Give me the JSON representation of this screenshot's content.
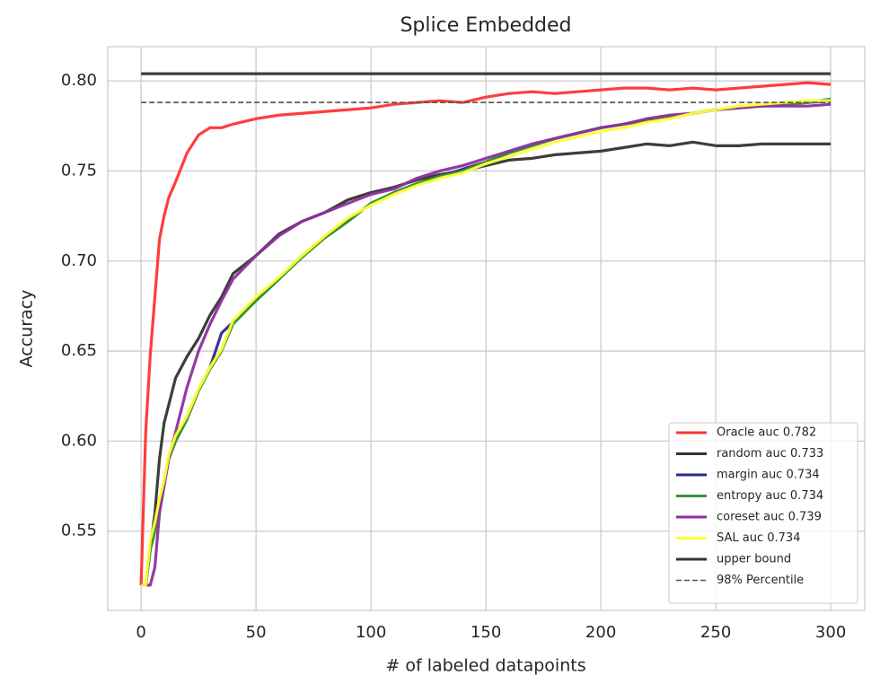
{
  "chart_data": {
    "type": "line",
    "title": "Splice Embedded",
    "x_label": "# of labeled datapoints",
    "y_label": "Accuracy",
    "x": [
      0,
      2,
      4,
      6,
      8,
      10,
      12,
      15,
      20,
      25,
      30,
      35,
      40,
      50,
      60,
      70,
      80,
      90,
      100,
      110,
      120,
      130,
      140,
      150,
      160,
      170,
      180,
      190,
      200,
      210,
      220,
      230,
      240,
      250,
      260,
      270,
      280,
      290,
      300
    ],
    "series": [
      {
        "name": "Oracle auc 0.782",
        "color": "#ff3333",
        "values": [
          0.52,
          0.605,
          0.648,
          0.68,
          0.712,
          0.725,
          0.735,
          0.744,
          0.76,
          0.77,
          0.774,
          0.774,
          0.776,
          0.779,
          0.781,
          0.782,
          0.783,
          0.784,
          0.785,
          0.787,
          0.788,
          0.789,
          0.788,
          0.791,
          0.793,
          0.794,
          0.793,
          0.794,
          0.795,
          0.796,
          0.796,
          0.795,
          0.796,
          0.795,
          0.796,
          0.797,
          0.798,
          0.799,
          0.798
        ]
      },
      {
        "name": "random auc 0.733",
        "color": "#333333",
        "values": [
          0.52,
          0.52,
          0.54,
          0.56,
          0.59,
          0.61,
          0.62,
          0.635,
          0.647,
          0.657,
          0.67,
          0.68,
          0.693,
          0.703,
          0.715,
          0.722,
          0.727,
          0.734,
          0.738,
          0.741,
          0.745,
          0.748,
          0.75,
          0.753,
          0.756,
          0.757,
          0.759,
          0.76,
          0.761,
          0.763,
          0.765,
          0.764,
          0.766,
          0.764,
          0.764,
          0.765,
          0.765,
          0.765,
          0.765
        ]
      },
      {
        "name": "margin auc 0.734",
        "color": "#2b2b8f",
        "values": [
          0.52,
          0.52,
          0.54,
          0.55,
          0.565,
          0.576,
          0.59,
          0.6,
          0.613,
          0.628,
          0.641,
          0.66,
          0.666,
          0.678,
          0.69,
          0.703,
          0.713,
          0.722,
          0.732,
          0.738,
          0.743,
          0.747,
          0.751,
          0.755,
          0.76,
          0.764,
          0.768,
          0.771,
          0.774,
          0.776,
          0.778,
          0.78,
          0.782,
          0.784,
          0.785,
          0.786,
          0.787,
          0.788,
          0.789
        ]
      },
      {
        "name": "entropy auc 0.734",
        "color": "#339933",
        "values": [
          0.52,
          0.52,
          0.54,
          0.55,
          0.565,
          0.575,
          0.59,
          0.6,
          0.612,
          0.628,
          0.64,
          0.65,
          0.665,
          0.678,
          0.69,
          0.702,
          0.713,
          0.722,
          0.732,
          0.738,
          0.743,
          0.747,
          0.75,
          0.755,
          0.76,
          0.764,
          0.768,
          0.771,
          0.774,
          0.776,
          0.778,
          0.78,
          0.782,
          0.784,
          0.785,
          0.786,
          0.787,
          0.788,
          0.79
        ]
      },
      {
        "name": "coreset auc 0.739",
        "color": "#8e2e9e",
        "values": [
          0.52,
          0.52,
          0.52,
          0.53,
          0.56,
          0.575,
          0.59,
          0.605,
          0.63,
          0.65,
          0.665,
          0.678,
          0.69,
          0.703,
          0.714,
          0.722,
          0.727,
          0.732,
          0.737,
          0.74,
          0.746,
          0.75,
          0.753,
          0.757,
          0.761,
          0.765,
          0.768,
          0.771,
          0.774,
          0.776,
          0.779,
          0.781,
          0.782,
          0.784,
          0.785,
          0.786,
          0.786,
          0.786,
          0.787
        ]
      },
      {
        "name": "SAL auc 0.734",
        "color": "#ffff33",
        "values": [
          0.52,
          0.52,
          0.545,
          0.555,
          0.568,
          0.578,
          0.592,
          0.603,
          0.614,
          0.629,
          0.641,
          0.651,
          0.667,
          0.68,
          0.691,
          0.703,
          0.714,
          0.724,
          0.731,
          0.737,
          0.742,
          0.746,
          0.749,
          0.754,
          0.758,
          0.762,
          0.766,
          0.769,
          0.772,
          0.774,
          0.777,
          0.779,
          0.782,
          0.784,
          0.786,
          0.787,
          0.788,
          0.789,
          0.789
        ]
      },
      {
        "name": "upper bound",
        "color": "#333333",
        "values": [
          0.804,
          0.804,
          0.804,
          0.804,
          0.804,
          0.804,
          0.804,
          0.804,
          0.804,
          0.804,
          0.804,
          0.804,
          0.804,
          0.804,
          0.804,
          0.804,
          0.804,
          0.804,
          0.804,
          0.804,
          0.804,
          0.804,
          0.804,
          0.804,
          0.804,
          0.804,
          0.804,
          0.804,
          0.804,
          0.804,
          0.804,
          0.804,
          0.804,
          0.804,
          0.804,
          0.804,
          0.804,
          0.804,
          0.804
        ]
      },
      {
        "name": "98% Percentile",
        "color": "#555555",
        "dashed": true,
        "values": [
          0.788,
          0.788,
          0.788,
          0.788,
          0.788,
          0.788,
          0.788,
          0.788,
          0.788,
          0.788,
          0.788,
          0.788,
          0.788,
          0.788,
          0.788,
          0.788,
          0.788,
          0.788,
          0.788,
          0.788,
          0.788,
          0.788,
          0.788,
          0.788,
          0.788,
          0.788,
          0.788,
          0.788,
          0.788,
          0.788,
          0.788,
          0.788,
          0.788,
          0.788,
          0.788,
          0.788,
          0.788,
          0.788,
          0.788
        ]
      }
    ],
    "xlim": [
      -14.5,
      314.8
    ],
    "xticks": [
      0,
      50,
      100,
      150,
      200,
      250,
      300
    ],
    "ylim": [
      0.506,
      0.819
    ],
    "yticks": [
      0.55,
      {
        "value": 0.6,
        "label": "0.60"
      },
      0.65,
      {
        "value": 0.7,
        "label": "0.70"
      },
      0.75,
      {
        "value": 0.8,
        "label": "0.80"
      }
    ],
    "grid": true,
    "legend": "lower right"
  }
}
